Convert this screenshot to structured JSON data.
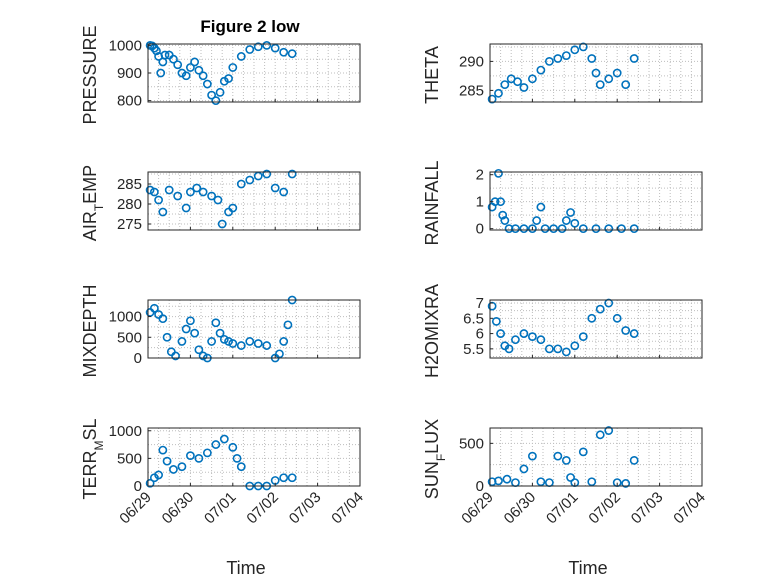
{
  "chart_data": [
    {
      "type": "scatter",
      "title": "Figure 2 low",
      "ylabel": "PRESSURE",
      "yticks": [
        800,
        900,
        1000
      ],
      "ylim": [
        795,
        1005
      ],
      "x": [
        0.05,
        0.1,
        0.15,
        0.2,
        0.25,
        0.3,
        0.35,
        0.4,
        0.5,
        0.6,
        0.7,
        0.8,
        0.9,
        1.0,
        1.1,
        1.2,
        1.3,
        1.4,
        1.5,
        1.6,
        1.7,
        1.8,
        1.9,
        2.0,
        2.2,
        2.4,
        2.6,
        2.8,
        3.0,
        3.2,
        3.4
      ],
      "y": [
        1000,
        998,
        990,
        980,
        960,
        900,
        940,
        965,
        965,
        950,
        930,
        900,
        890,
        920,
        940,
        910,
        890,
        860,
        820,
        800,
        830,
        870,
        880,
        920,
        960,
        985,
        995,
        1000,
        990,
        975,
        970
      ],
      "xticks": [
        "06/29",
        "06/30",
        "07/01",
        "07/02",
        "07/03",
        "07/04"
      ],
      "xlim": [
        0,
        5
      ],
      "xlabel": ""
    },
    {
      "type": "scatter",
      "title": "",
      "ylabel": "THETA",
      "yticks": [
        285,
        290
      ],
      "ylim": [
        283,
        293
      ],
      "x": [
        0.05,
        0.2,
        0.35,
        0.5,
        0.65,
        0.8,
        1.0,
        1.2,
        1.4,
        1.6,
        1.8,
        2.0,
        2.2,
        2.4,
        2.5,
        2.6,
        2.8,
        3.0,
        3.2,
        3.4
      ],
      "y": [
        283.5,
        284.5,
        286,
        287,
        286.5,
        285.5,
        287,
        288.5,
        290,
        290.5,
        291,
        292,
        292.5,
        290.5,
        288,
        286,
        287,
        288,
        286,
        290.5
      ],
      "xticks": [
        "06/29",
        "06/30",
        "07/01",
        "07/02",
        "07/03",
        "07/04"
      ],
      "xlim": [
        0,
        5
      ],
      "xlabel": ""
    },
    {
      "type": "scatter",
      "title": "",
      "ylabel": "AIR_TEMP",
      "yticks": [
        275,
        280,
        285
      ],
      "ylim": [
        273.5,
        288
      ],
      "x": [
        0.05,
        0.15,
        0.25,
        0.35,
        0.5,
        0.7,
        0.9,
        1.0,
        1.15,
        1.3,
        1.5,
        1.65,
        1.75,
        1.9,
        2.0,
        2.2,
        2.4,
        2.6,
        2.8,
        3.0,
        3.2,
        3.4
      ],
      "y": [
        283.5,
        283,
        281,
        278,
        283.5,
        282,
        279,
        283,
        284,
        283,
        282,
        281,
        275,
        278,
        279,
        285,
        286,
        287,
        287.5,
        284,
        283,
        287.5
      ],
      "xticks": [
        "06/29",
        "06/30",
        "07/01",
        "07/02",
        "07/03",
        "07/04"
      ],
      "xlim": [
        0,
        5
      ],
      "xlabel": ""
    },
    {
      "type": "scatter",
      "title": "",
      "ylabel": "RAINFALL",
      "yticks": [
        0,
        1,
        2
      ],
      "ylim": [
        -0.05,
        2.1
      ],
      "x": [
        0.05,
        0.12,
        0.2,
        0.25,
        0.3,
        0.35,
        0.45,
        0.6,
        0.8,
        1.0,
        1.1,
        1.2,
        1.3,
        1.5,
        1.7,
        1.8,
        1.9,
        2.0,
        2.2,
        2.5,
        2.8,
        3.1,
        3.4
      ],
      "y": [
        0.8,
        1.0,
        2.05,
        1.0,
        0.5,
        0.3,
        0,
        0,
        0,
        0,
        0.3,
        0.8,
        0,
        0,
        0,
        0.3,
        0.6,
        0.2,
        0,
        0,
        0,
        0,
        0
      ],
      "xticks": [
        "06/29",
        "06/30",
        "07/01",
        "07/02",
        "07/03",
        "07/04"
      ],
      "xlim": [
        0,
        5
      ],
      "xlabel": ""
    },
    {
      "type": "scatter",
      "title": "",
      "ylabel": "MIXDEPTH",
      "yticks": [
        0,
        500,
        1000
      ],
      "ylim": [
        0,
        1400
      ],
      "x": [
        0.05,
        0.15,
        0.25,
        0.35,
        0.45,
        0.55,
        0.65,
        0.8,
        0.9,
        1.0,
        1.1,
        1.2,
        1.3,
        1.4,
        1.5,
        1.6,
        1.7,
        1.8,
        1.9,
        2.0,
        2.2,
        2.4,
        2.6,
        2.8,
        3.0,
        3.1,
        3.2,
        3.3,
        3.4
      ],
      "y": [
        1100,
        1200,
        1050,
        950,
        500,
        150,
        50,
        400,
        700,
        900,
        600,
        200,
        50,
        0,
        400,
        850,
        600,
        450,
        400,
        350,
        300,
        400,
        350,
        300,
        0,
        100,
        400,
        800,
        1400
      ],
      "xticks": [
        "06/29",
        "06/30",
        "07/01",
        "07/02",
        "07/03",
        "07/04"
      ],
      "xlim": [
        0,
        5
      ],
      "xlabel": ""
    },
    {
      "type": "scatter",
      "title": "",
      "ylabel": "H2OMIXRA",
      "yticks": [
        5.5,
        6,
        6.5,
        7
      ],
      "ylim": [
        5.2,
        7.1
      ],
      "x": [
        0.05,
        0.15,
        0.25,
        0.35,
        0.45,
        0.6,
        0.8,
        1.0,
        1.2,
        1.4,
        1.6,
        1.8,
        2.0,
        2.2,
        2.4,
        2.6,
        2.8,
        3.0,
        3.2,
        3.4
      ],
      "y": [
        6.9,
        6.4,
        6.0,
        5.6,
        5.5,
        5.8,
        6.0,
        5.9,
        5.8,
        5.5,
        5.5,
        5.4,
        5.6,
        5.9,
        6.5,
        6.8,
        7.0,
        6.5,
        6.1,
        6.0
      ],
      "xticks": [
        "06/29",
        "06/30",
        "07/01",
        "07/02",
        "07/03",
        "07/04"
      ],
      "xlim": [
        0,
        5
      ],
      "xlabel": ""
    },
    {
      "type": "scatter",
      "title": "",
      "ylabel": "TERR_MSL",
      "yticks": [
        0,
        500,
        1000
      ],
      "ylim": [
        0,
        1050
      ],
      "x": [
        0.05,
        0.15,
        0.25,
        0.35,
        0.45,
        0.6,
        0.8,
        1.0,
        1.2,
        1.4,
        1.6,
        1.8,
        2.0,
        2.1,
        2.2,
        2.4,
        2.6,
        2.8,
        3.0,
        3.2,
        3.4
      ],
      "y": [
        50,
        150,
        200,
        650,
        450,
        300,
        350,
        550,
        500,
        600,
        750,
        850,
        700,
        500,
        350,
        0,
        0,
        0,
        100,
        150,
        150
      ],
      "xticks": [
        "06/29",
        "06/30",
        "07/01",
        "07/02",
        "07/03",
        "07/04"
      ],
      "xlim": [
        0,
        5
      ],
      "xlabel": "Time"
    },
    {
      "type": "scatter",
      "title": "",
      "ylabel": "SUN_FLUX",
      "yticks": [
        0,
        500
      ],
      "ylim": [
        0,
        680
      ],
      "x": [
        0.05,
        0.2,
        0.4,
        0.6,
        0.8,
        1.0,
        1.2,
        1.4,
        1.6,
        1.8,
        1.9,
        2.0,
        2.2,
        2.4,
        2.6,
        2.8,
        3.0,
        3.2,
        3.4
      ],
      "y": [
        50,
        60,
        80,
        40,
        200,
        350,
        50,
        40,
        350,
        300,
        100,
        40,
        400,
        50,
        600,
        650,
        40,
        30,
        300
      ],
      "xticks": [
        "06/29",
        "06/30",
        "07/01",
        "07/02",
        "07/03",
        "07/04"
      ],
      "xlim": [
        0,
        5
      ],
      "xlabel": "Time"
    }
  ],
  "style": {
    "marker_color": "#0072bd"
  }
}
